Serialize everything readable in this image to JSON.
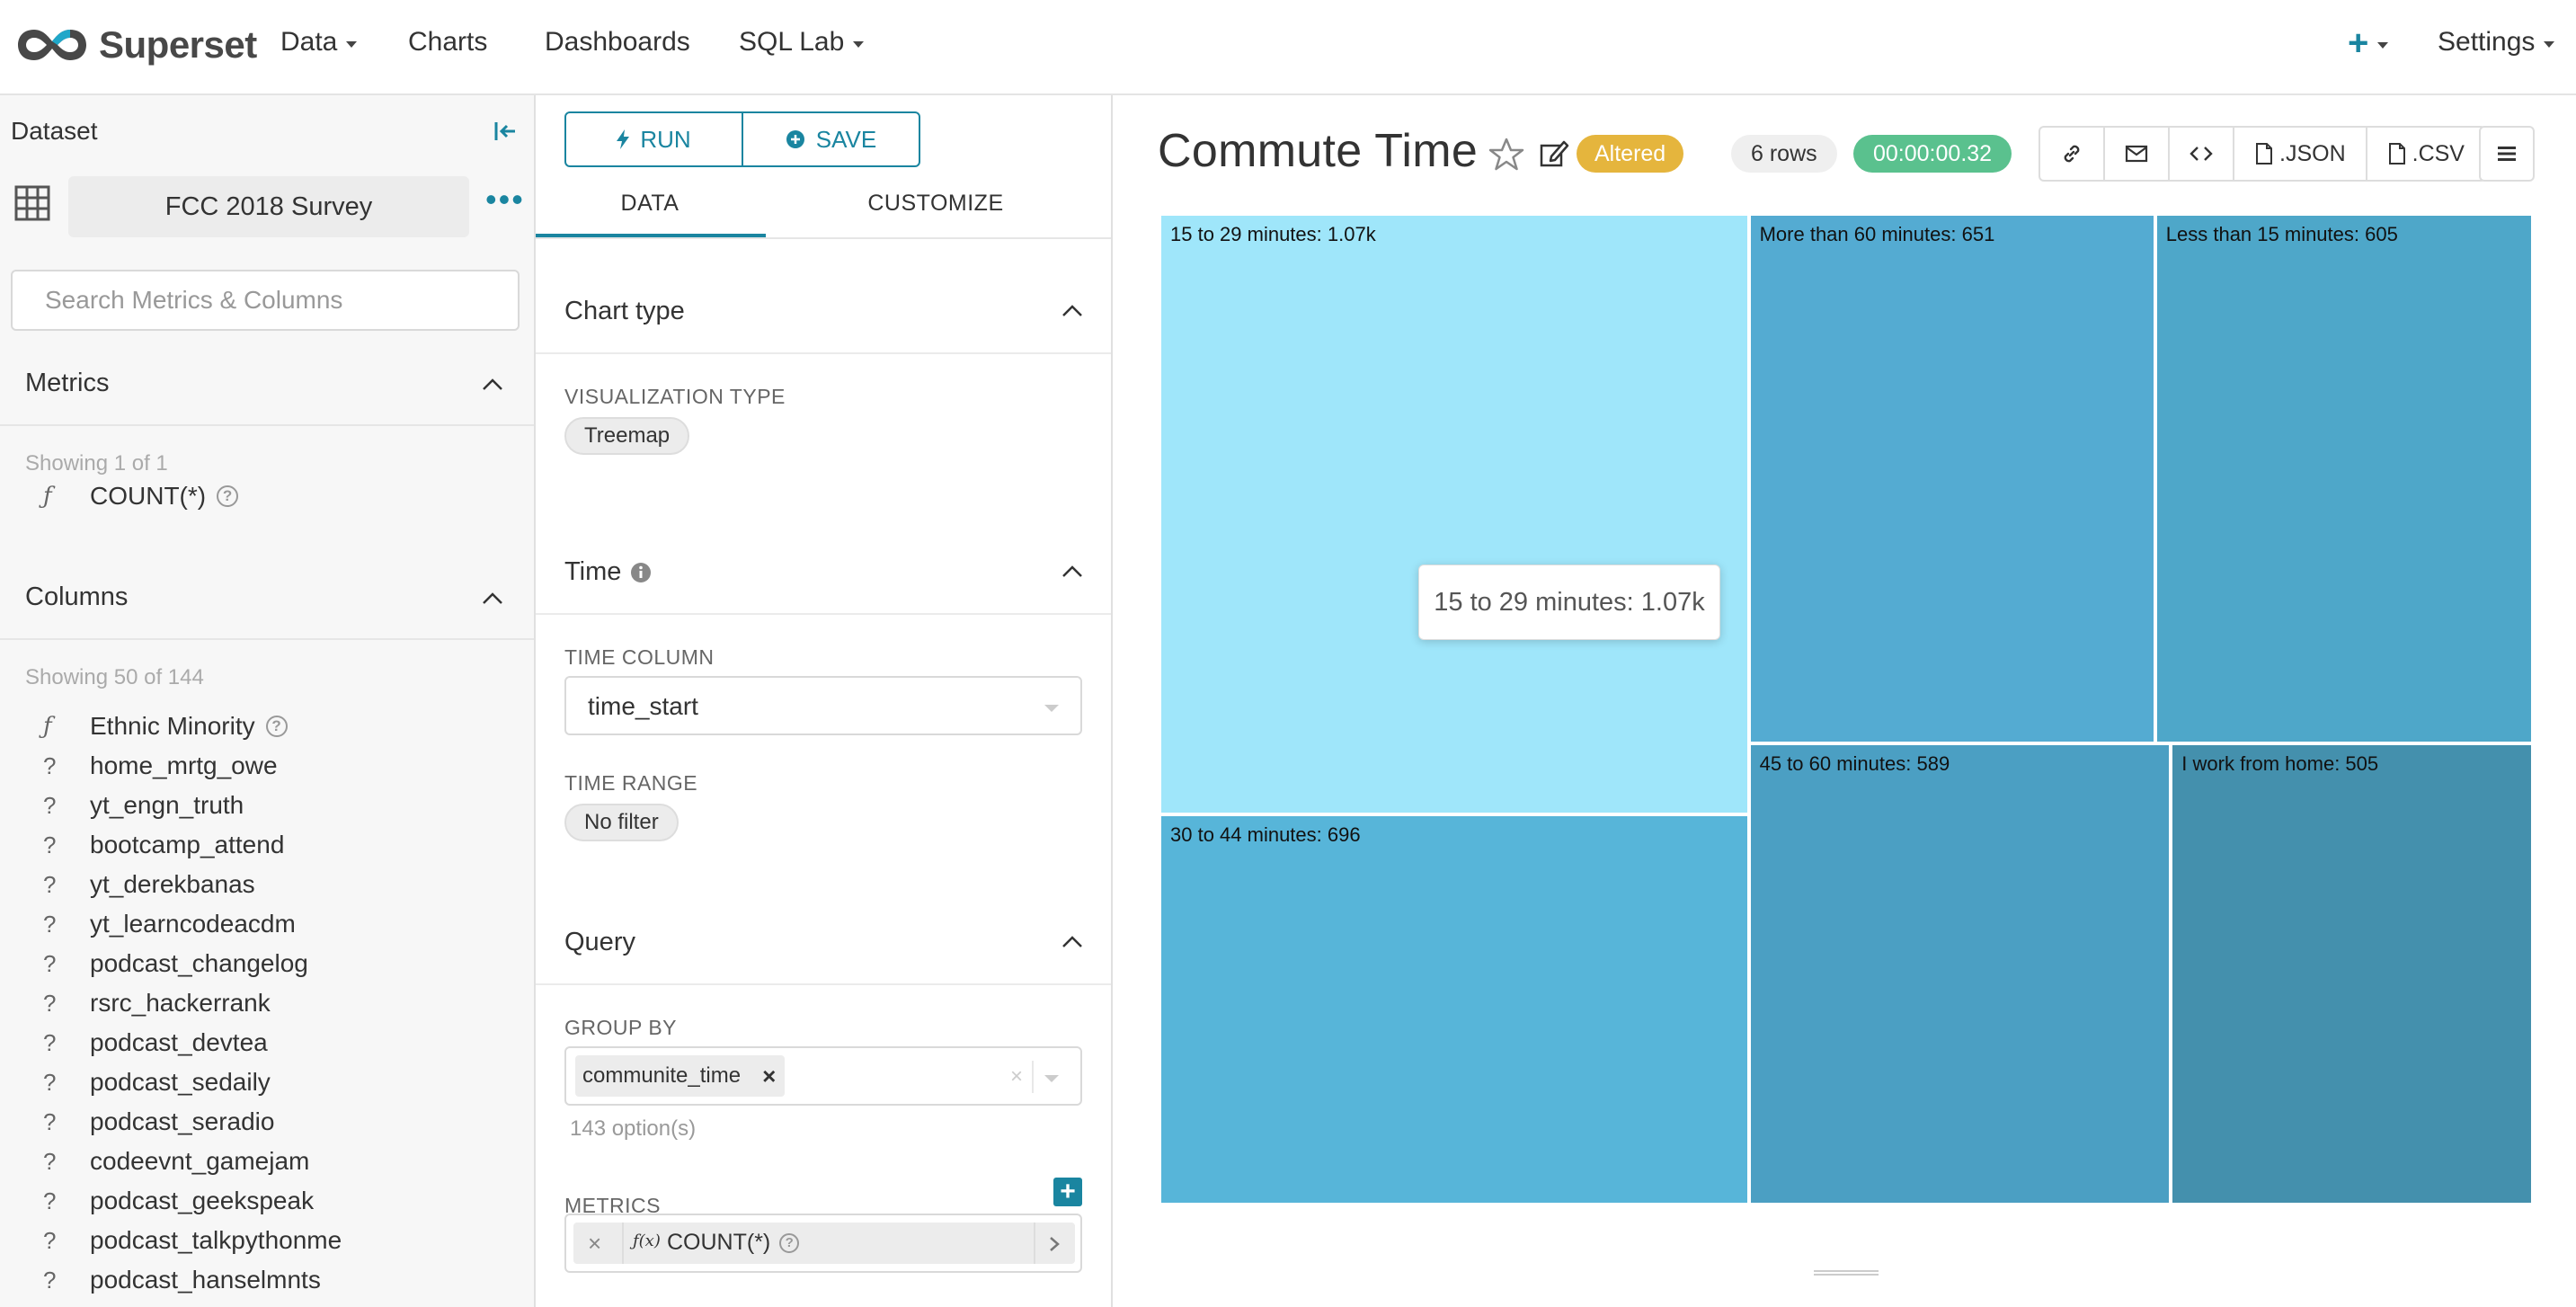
{
  "navbar": {
    "brand": "Superset",
    "items": [
      {
        "label": "Data",
        "caret": true
      },
      {
        "label": "Charts",
        "caret": false
      },
      {
        "label": "Dashboards",
        "caret": false
      },
      {
        "label": "SQL Lab",
        "caret": true
      }
    ],
    "plus_icon": "plus-icon",
    "settings": "Settings"
  },
  "datasource_panel": {
    "title": "Dataset",
    "dataset_name": "FCC 2018 Survey",
    "search_placeholder": "Search Metrics & Columns",
    "metrics_header": "Metrics",
    "metrics_showing": "Showing 1 of 1",
    "metrics": [
      {
        "type": "ƒ",
        "name": "COUNT(*)",
        "info": true
      }
    ],
    "columns_header": "Columns",
    "columns_showing": "Showing 50 of 144",
    "columns": [
      {
        "type": "ƒ",
        "name": "Ethnic Minority",
        "info": true
      },
      {
        "type": "?",
        "name": "home_mrtg_owe"
      },
      {
        "type": "?",
        "name": "yt_engn_truth"
      },
      {
        "type": "?",
        "name": "bootcamp_attend"
      },
      {
        "type": "?",
        "name": "yt_derekbanas"
      },
      {
        "type": "?",
        "name": "yt_learncodeacdm"
      },
      {
        "type": "?",
        "name": "podcast_changelog"
      },
      {
        "type": "?",
        "name": "rsrc_hackerrank"
      },
      {
        "type": "?",
        "name": "podcast_devtea"
      },
      {
        "type": "?",
        "name": "podcast_sedaily"
      },
      {
        "type": "?",
        "name": "podcast_seradio"
      },
      {
        "type": "?",
        "name": "codeevnt_gamejam"
      },
      {
        "type": "?",
        "name": "podcast_geekspeak"
      },
      {
        "type": "?",
        "name": "podcast_talkpythonme"
      },
      {
        "type": "?",
        "name": "podcast_hanselmnts"
      }
    ]
  },
  "control_panel": {
    "run_label": "RUN",
    "save_label": "SAVE",
    "tabs": [
      "DATA",
      "CUSTOMIZE"
    ],
    "active_tab": "DATA",
    "chart_type_header": "Chart type",
    "viz_type_label": "VISUALIZATION TYPE",
    "viz_type_value": "Treemap",
    "time_header": "Time",
    "time_column_label": "TIME COLUMN",
    "time_column_value": "time_start",
    "time_range_label": "TIME RANGE",
    "time_range_value": "No filter",
    "query_header": "Query",
    "group_by_label": "GROUP BY",
    "group_by_tag": "communite_time",
    "group_by_options": "143 option(s)",
    "metrics_label": "METRICS",
    "metric_tag": "COUNT(*)",
    "metric_fx": "ƒ(x)"
  },
  "chart_header": {
    "title": "Commute Time",
    "altered_badge": "Altered",
    "rows_badge": "6 rows",
    "time_badge": "00:00:00.32",
    "actions": [
      {
        "icon": "link-icon",
        "label": ""
      },
      {
        "icon": "mail-icon",
        "label": ""
      },
      {
        "icon": "code-icon",
        "label": ""
      },
      {
        "icon": "file-icon",
        "label": ".JSON"
      },
      {
        "icon": "file-icon",
        "label": ".CSV"
      }
    ],
    "menu_icon": "menu-icon"
  },
  "chart_data": {
    "type": "treemap",
    "title": "Commute Time",
    "items": [
      {
        "label": "15 to 29 minutes",
        "value": 1070,
        "display": "15 to 29 minutes: 1.07k",
        "color": "#9fe6fa"
      },
      {
        "label": "30 to 44 minutes",
        "value": 696,
        "display": "30 to 44 minutes: 696",
        "color": "#57b5d9"
      },
      {
        "label": "More than 60 minutes",
        "value": 651,
        "display": "More than 60 minutes: 651",
        "color": "#54abd2"
      },
      {
        "label": "Less than 15 minutes",
        "value": 605,
        "display": "Less than 15 minutes: 605",
        "color": "#4ea7c9"
      },
      {
        "label": "45 to 60 minutes",
        "value": 589,
        "display": "45 to 60 minutes: 589",
        "color": "#4b9fc3"
      },
      {
        "label": "I work from home",
        "value": 505,
        "display": "I work from home: 505",
        "color": "#4490ad"
      }
    ],
    "tooltip": "15 to 29 minutes: 1.07k"
  }
}
